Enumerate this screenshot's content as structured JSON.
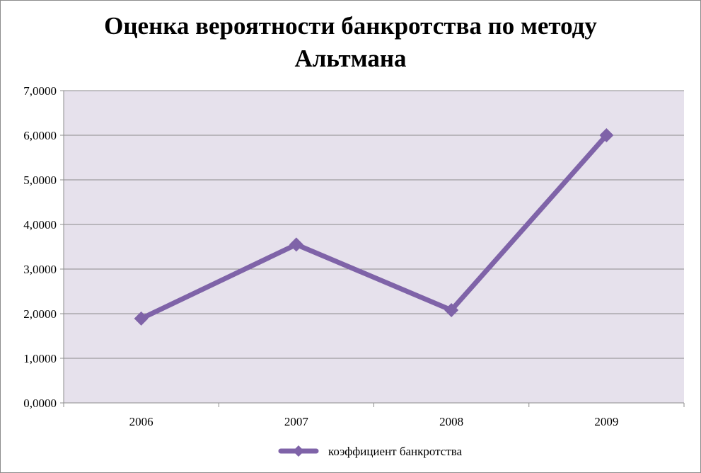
{
  "chart_data": {
    "type": "line",
    "title_line1": "Оценка вероятности банкротства по методу",
    "title_line2": "Альтмана",
    "categories": [
      "2006",
      "2007",
      "2008",
      "2009"
    ],
    "series": [
      {
        "name": "коэффициент банкротства",
        "values": [
          1.89,
          3.55,
          2.08,
          6.0
        ],
        "color": "#7f63a8"
      }
    ],
    "ylim": [
      0,
      7
    ],
    "yticks": [
      "0,0000",
      "1,0000",
      "2,0000",
      "3,0000",
      "4,0000",
      "5,0000",
      "6,0000",
      "7,0000"
    ],
    "grid": true,
    "legend": "bottom",
    "colors": {
      "plot_bg": "#e6e1ec",
      "grid": "#8c8c8c"
    }
  }
}
